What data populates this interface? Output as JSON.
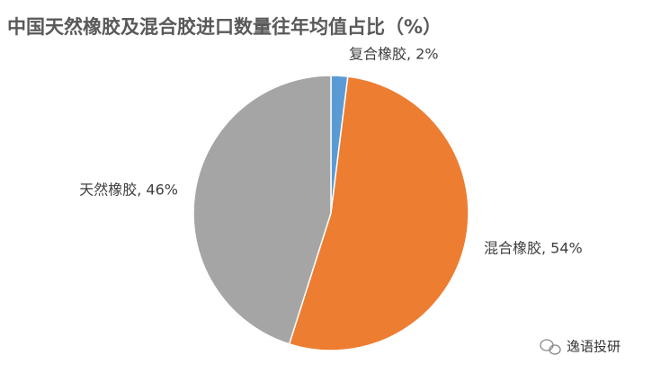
{
  "chart_data": {
    "type": "pie",
    "title": "中国天然橡胶及混合胶进口数量往年均值占比（%）",
    "values": [
      2,
      54,
      46
    ],
    "value_labels": [
      "复合橡胶, 2%",
      "混合橡胶, 54%",
      "天然橡胶, 46%"
    ],
    "colors": [
      "#5b9bd5",
      "#ed7d31",
      "#a5a5a5"
    ]
  },
  "watermark": "逸语投研"
}
